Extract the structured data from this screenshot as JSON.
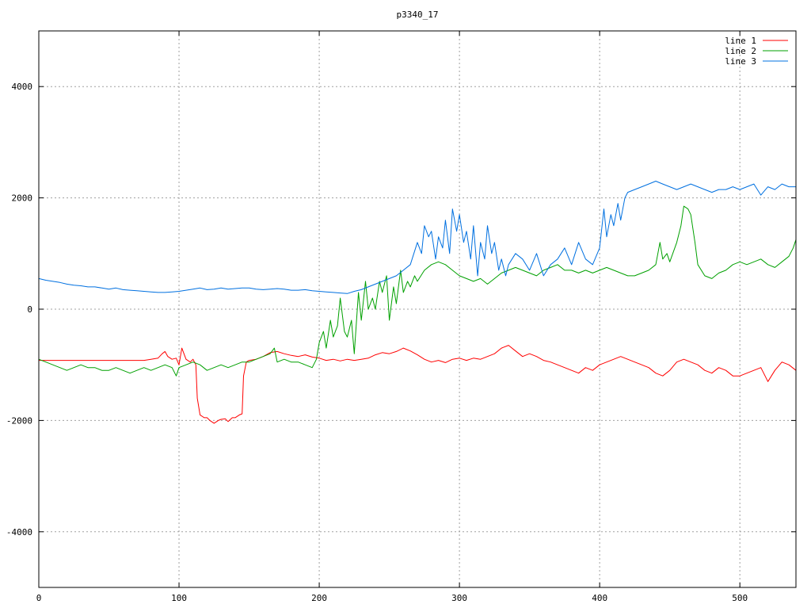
{
  "chart_data": {
    "type": "line",
    "title": "p3340_17",
    "xlabel": "",
    "ylabel": "",
    "xlim": [
      0,
      540
    ],
    "ylim": [
      -5000,
      5000
    ],
    "xticks": [
      0,
      100,
      200,
      300,
      400,
      500
    ],
    "yticks": [
      -4000,
      -2000,
      0,
      2000,
      4000
    ],
    "xtick_labels": [
      "0",
      "100",
      "200",
      "300",
      "400",
      "500"
    ],
    "ytick_labels": [
      "-4000",
      "-2000",
      "0",
      "2000",
      "4000"
    ],
    "grid": true,
    "legend_position": "top-right",
    "series": [
      {
        "name": "line 1",
        "color": "#ff0000",
        "x": [
          0,
          10,
          20,
          30,
          40,
          50,
          60,
          70,
          75,
          80,
          85,
          88,
          90,
          92,
          95,
          98,
          100,
          102,
          105,
          108,
          110,
          112,
          113,
          115,
          118,
          120,
          122,
          125,
          128,
          130,
          133,
          135,
          138,
          140,
          143,
          145,
          146,
          148,
          150,
          155,
          160,
          165,
          170,
          175,
          180,
          185,
          190,
          195,
          200,
          205,
          210,
          215,
          220,
          225,
          230,
          235,
          240,
          245,
          250,
          255,
          260,
          265,
          270,
          275,
          280,
          285,
          290,
          295,
          300,
          305,
          310,
          315,
          320,
          325,
          330,
          335,
          340,
          345,
          350,
          355,
          360,
          365,
          370,
          375,
          380,
          385,
          390,
          395,
          400,
          405,
          410,
          415,
          420,
          425,
          430,
          435,
          440,
          445,
          450,
          455,
          460,
          465,
          470,
          475,
          480,
          485,
          490,
          495,
          500,
          505,
          510,
          515,
          520,
          525,
          530,
          535,
          540
        ],
        "y": [
          -920,
          -920,
          -920,
          -920,
          -920,
          -920,
          -920,
          -920,
          -920,
          -900,
          -880,
          -800,
          -760,
          -850,
          -900,
          -880,
          -1000,
          -700,
          -900,
          -950,
          -900,
          -1000,
          -1600,
          -1900,
          -1950,
          -1950,
          -2000,
          -2050,
          -2000,
          -1980,
          -1970,
          -2020,
          -1950,
          -1950,
          -1900,
          -1880,
          -1200,
          -950,
          -920,
          -900,
          -850,
          -780,
          -760,
          -800,
          -830,
          -850,
          -820,
          -860,
          -880,
          -920,
          -900,
          -930,
          -900,
          -920,
          -900,
          -880,
          -820,
          -780,
          -800,
          -760,
          -700,
          -750,
          -820,
          -900,
          -950,
          -920,
          -960,
          -900,
          -880,
          -920,
          -880,
          -900,
          -850,
          -800,
          -700,
          -650,
          -750,
          -850,
          -800,
          -850,
          -920,
          -950,
          -1000,
          -1050,
          -1100,
          -1150,
          -1050,
          -1100,
          -1000,
          -950,
          -900,
          -850,
          -900,
          -950,
          -1000,
          -1050,
          -1150,
          -1200,
          -1100,
          -950,
          -900,
          -950,
          -1000,
          -1100,
          -1150,
          -1050,
          -1100,
          -1200,
          -1200,
          -1150,
          -1100,
          -1050,
          -1300,
          -1100,
          -950,
          -1000,
          -1100
        ]
      },
      {
        "name": "line 2",
        "color": "#00a000",
        "x": [
          0,
          5,
          10,
          15,
          20,
          25,
          30,
          35,
          40,
          45,
          50,
          55,
          60,
          65,
          70,
          75,
          80,
          85,
          90,
          95,
          98,
          100,
          105,
          110,
          115,
          120,
          125,
          130,
          135,
          140,
          145,
          150,
          155,
          160,
          165,
          168,
          170,
          175,
          180,
          185,
          190,
          195,
          198,
          200,
          203,
          205,
          208,
          210,
          213,
          215,
          218,
          220,
          223,
          225,
          228,
          230,
          233,
          235,
          238,
          240,
          243,
          245,
          248,
          250,
          253,
          255,
          258,
          260,
          263,
          265,
          268,
          270,
          275,
          280,
          285,
          290,
          295,
          300,
          305,
          310,
          315,
          320,
          325,
          330,
          335,
          340,
          345,
          350,
          355,
          360,
          365,
          370,
          375,
          380,
          385,
          390,
          395,
          400,
          405,
          410,
          415,
          420,
          425,
          430,
          435,
          440,
          443,
          445,
          448,
          450,
          455,
          458,
          460,
          463,
          465,
          468,
          470,
          475,
          480,
          485,
          490,
          495,
          500,
          505,
          510,
          515,
          520,
          525,
          530,
          535,
          538,
          540
        ],
        "y": [
          -900,
          -950,
          -1000,
          -1050,
          -1100,
          -1050,
          -1000,
          -1050,
          -1050,
          -1100,
          -1100,
          -1050,
          -1100,
          -1150,
          -1100,
          -1050,
          -1100,
          -1050,
          -1000,
          -1050,
          -1200,
          -1050,
          -1000,
          -950,
          -1000,
          -1100,
          -1050,
          -1000,
          -1050,
          -1000,
          -950,
          -950,
          -900,
          -850,
          -800,
          -700,
          -950,
          -900,
          -950,
          -950,
          -1000,
          -1050,
          -900,
          -600,
          -400,
          -700,
          -200,
          -500,
          -300,
          200,
          -400,
          -500,
          -200,
          -800,
          300,
          -200,
          500,
          0,
          200,
          0,
          500,
          300,
          600,
          -200,
          400,
          100,
          700,
          300,
          500,
          400,
          600,
          500,
          700,
          800,
          850,
          800,
          700,
          600,
          550,
          500,
          550,
          450,
          550,
          650,
          700,
          750,
          700,
          650,
          600,
          700,
          750,
          800,
          700,
          700,
          650,
          700,
          650,
          700,
          750,
          700,
          650,
          600,
          600,
          650,
          700,
          800,
          1200,
          900,
          1000,
          850,
          1200,
          1500,
          1850,
          1800,
          1700,
          1200,
          800,
          600,
          550,
          650,
          700,
          800,
          850,
          800,
          850,
          900,
          800,
          750,
          850,
          950,
          1100,
          1250
        ]
      },
      {
        "name": "line 3",
        "color": "#0070e0",
        "x": [
          0,
          5,
          10,
          15,
          20,
          25,
          30,
          35,
          40,
          45,
          50,
          55,
          60,
          65,
          70,
          75,
          80,
          85,
          90,
          95,
          100,
          105,
          110,
          115,
          120,
          125,
          130,
          135,
          140,
          145,
          150,
          155,
          160,
          165,
          170,
          175,
          180,
          185,
          190,
          195,
          200,
          205,
          210,
          215,
          220,
          225,
          230,
          235,
          240,
          245,
          250,
          255,
          260,
          265,
          270,
          273,
          275,
          278,
          280,
          283,
          285,
          288,
          290,
          293,
          295,
          298,
          300,
          303,
          305,
          308,
          310,
          313,
          315,
          318,
          320,
          323,
          325,
          328,
          330,
          333,
          335,
          340,
          345,
          350,
          355,
          360,
          365,
          370,
          375,
          380,
          385,
          390,
          395,
          400,
          403,
          405,
          408,
          410,
          413,
          415,
          418,
          420,
          425,
          430,
          435,
          440,
          445,
          450,
          455,
          460,
          465,
          470,
          475,
          480,
          485,
          490,
          495,
          500,
          505,
          510,
          515,
          520,
          525,
          530,
          535,
          540
        ],
        "y": [
          550,
          520,
          500,
          480,
          450,
          430,
          420,
          400,
          400,
          380,
          360,
          380,
          350,
          340,
          330,
          320,
          310,
          300,
          300,
          310,
          320,
          340,
          360,
          380,
          350,
          360,
          380,
          360,
          370,
          380,
          380,
          360,
          350,
          360,
          370,
          360,
          340,
          340,
          350,
          330,
          320,
          310,
          300,
          290,
          280,
          320,
          350,
          400,
          450,
          500,
          550,
          600,
          700,
          800,
          1200,
          1000,
          1500,
          1300,
          1400,
          900,
          1300,
          1100,
          1600,
          1000,
          1800,
          1400,
          1700,
          1200,
          1400,
          900,
          1500,
          600,
          1200,
          900,
          1500,
          1000,
          1200,
          700,
          900,
          600,
          800,
          1000,
          900,
          700,
          1000,
          600,
          800,
          900,
          1100,
          800,
          1200,
          900,
          800,
          1100,
          1800,
          1300,
          1700,
          1500,
          1900,
          1600,
          2000,
          2100,
          2150,
          2200,
          2250,
          2300,
          2250,
          2200,
          2150,
          2200,
          2250,
          2200,
          2150,
          2100,
          2150,
          2150,
          2200,
          2150,
          2200,
          2250,
          2050,
          2200,
          2150,
          2250,
          2200,
          2200
        ]
      }
    ]
  }
}
